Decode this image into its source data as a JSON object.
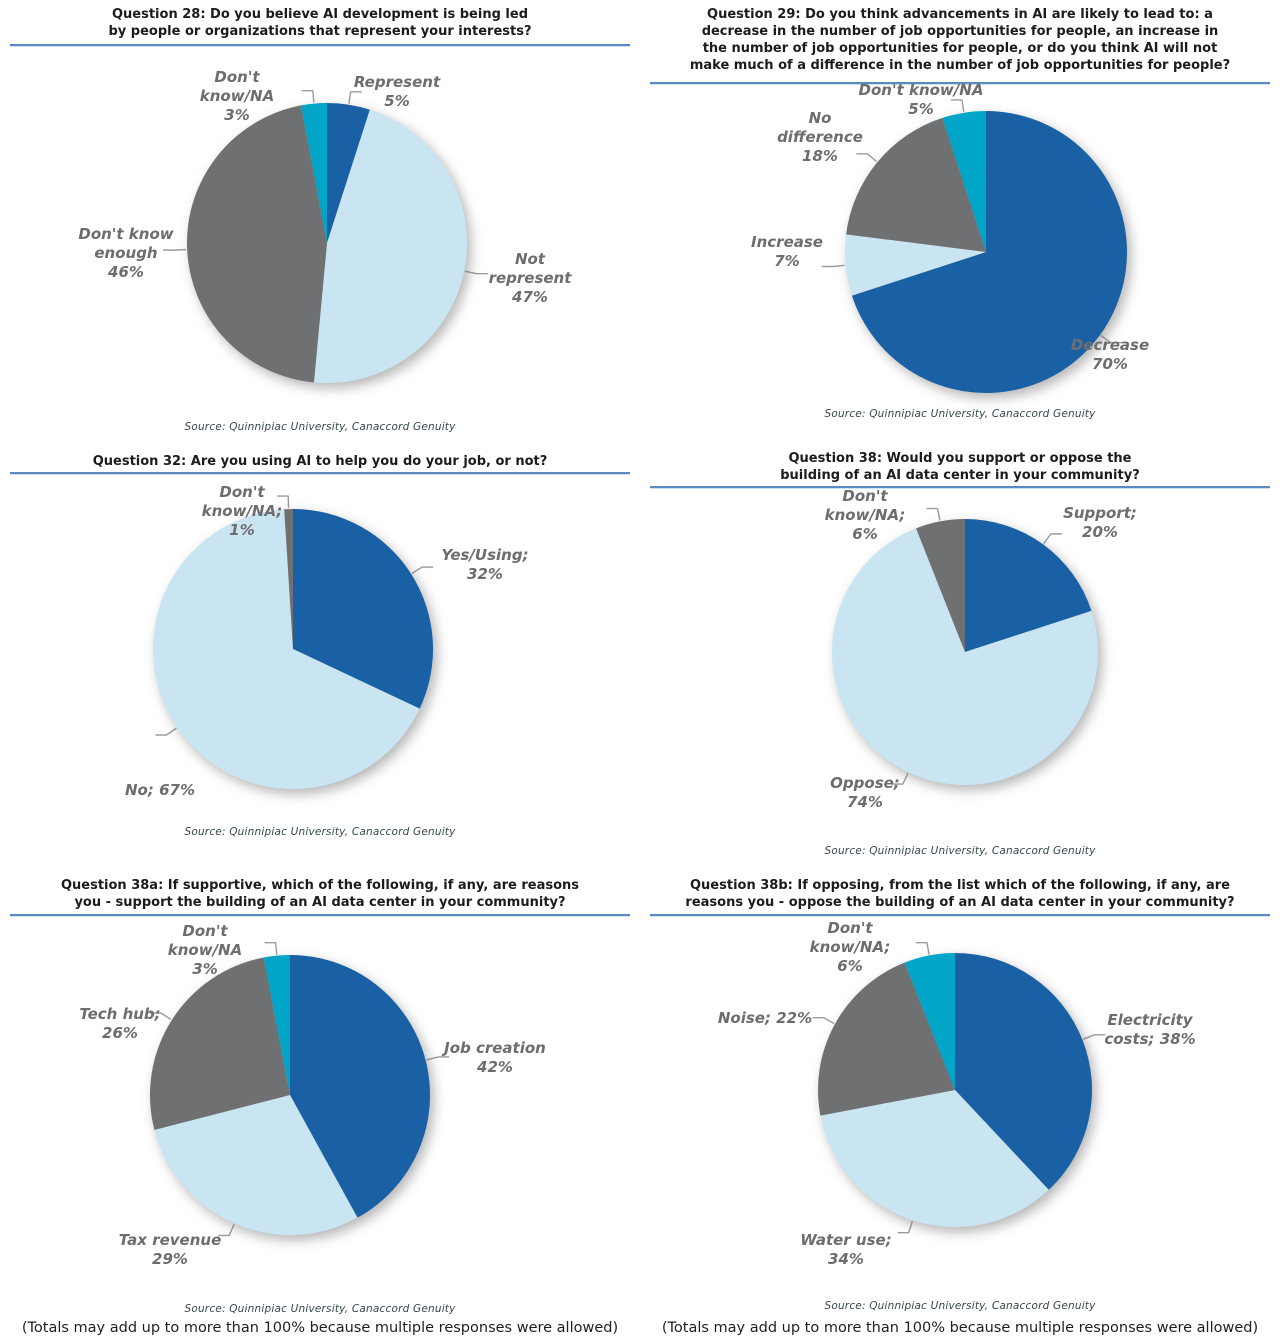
{
  "palette": {
    "dark_blue": "#1A60A5",
    "light_blue": "#C9E5F2",
    "gray": "#6E7072",
    "cyan": "#00A5C8",
    "title_rule": "#5A8AC0",
    "label_gray": "#6D6D6F"
  },
  "chart_data": [
    {
      "type": "pie",
      "title": "Question 28: Do you believe AI development is being led\nby people or organizations that represent your interests?",
      "labels": [
        "Represent",
        "Not represent",
        "Don't know enough",
        "Don't know/NA"
      ],
      "values": [
        5,
        47,
        46,
        3
      ],
      "colors": [
        "#1A60A5",
        "#C9E5F2",
        "#6E7072",
        "#00A5C8"
      ],
      "label_display": [
        "Represent\n5%",
        "Not\nrepresent\n47%",
        "Don't know\nenough\n46%",
        "Don't\nknow/NA\n3%"
      ],
      "legend_position": "outside-callouts",
      "source": "Source: Quinnipiac University, Canaccord Genuity"
    },
    {
      "type": "pie",
      "title": "Question 29: Do you think advancements in AI are likely to lead to: a\ndecrease in the number of job opportunities for people, an increase in\nthe number of job opportunities for people, or do you think AI will not\nmake much of a difference in the number of job opportunities for people?",
      "labels": [
        "Decrease",
        "Increase",
        "No difference",
        "Don't know/NA"
      ],
      "values": [
        70,
        7,
        18,
        5
      ],
      "colors": [
        "#1A60A5",
        "#C9E5F2",
        "#6E7072",
        "#00A5C8"
      ],
      "label_display": [
        "Decrease\n70%",
        "Increase\n7%",
        "No\ndifference\n18%",
        "Don't know/NA\n5%"
      ],
      "legend_position": "outside-callouts",
      "source": "Source: Quinnipiac University, Canaccord Genuity"
    },
    {
      "type": "pie",
      "title": "Question 32: Are you using AI to help you do your job, or not?",
      "labels": [
        "Yes/Using",
        "No",
        "Don't know/NA"
      ],
      "values": [
        32,
        67,
        1
      ],
      "colors": [
        "#1A60A5",
        "#C9E5F2",
        "#6E7072"
      ],
      "label_display": [
        "Yes/Using;\n32%",
        "No; 67%",
        "Don't\nknow/NA;\n1%"
      ],
      "legend_position": "outside-callouts",
      "source": "Source: Quinnipiac University, Canaccord Genuity"
    },
    {
      "type": "pie",
      "title": "Question 38: Would you support or oppose the\nbuilding of an AI data center in your community?",
      "labels": [
        "Support",
        "Oppose",
        "Don't know/NA"
      ],
      "values": [
        20,
        74,
        6
      ],
      "colors": [
        "#1A60A5",
        "#C9E5F2",
        "#6E7072"
      ],
      "label_display": [
        "Support;\n20%",
        "Oppose;\n74%",
        "Don't\nknow/NA;\n6%"
      ],
      "legend_position": "outside-callouts",
      "source": "Source: Quinnipiac University, Canaccord Genuity"
    },
    {
      "type": "pie",
      "title": "Question 38a: If supportive, which of the following, if any, are reasons\nyou - support the building of an AI data center in your community?",
      "labels": [
        "Job creation",
        "Tax revenue",
        "Tech hub",
        "Don't know/NA"
      ],
      "values": [
        42,
        29,
        26,
        3
      ],
      "colors": [
        "#1A60A5",
        "#C9E5F2",
        "#6E7072",
        "#00A5C8"
      ],
      "label_display": [
        "Job creation\n42%",
        "Tax revenue\n29%",
        "Tech hub;\n26%",
        "Don't\nknow/NA\n3%"
      ],
      "legend_position": "outside-callouts",
      "source": "Source: Quinnipiac University, Canaccord Genuity",
      "note": "(Totals may add up to more than 100% because multiple responses were allowed)"
    },
    {
      "type": "pie",
      "title": "Question 38b: If opposing, from the list which of the following, if any, are\nreasons you - oppose the building of an AI data center in your community?",
      "labels": [
        "Electricity costs",
        "Water use",
        "Noise",
        "Don't know/NA"
      ],
      "values": [
        38,
        34,
        22,
        6
      ],
      "colors": [
        "#1A60A5",
        "#C9E5F2",
        "#6E7072",
        "#00A5C8"
      ],
      "label_display": [
        "Electricity\ncosts; 38%",
        "Water use;\n34%",
        "Noise; 22%",
        "Don't\nknow/NA;\n6%"
      ],
      "legend_position": "outside-callouts",
      "source": "Source: Quinnipiac University, Canaccord Genuity",
      "note": "(Totals may add up to more than 100% because multiple responses were allowed)"
    }
  ]
}
